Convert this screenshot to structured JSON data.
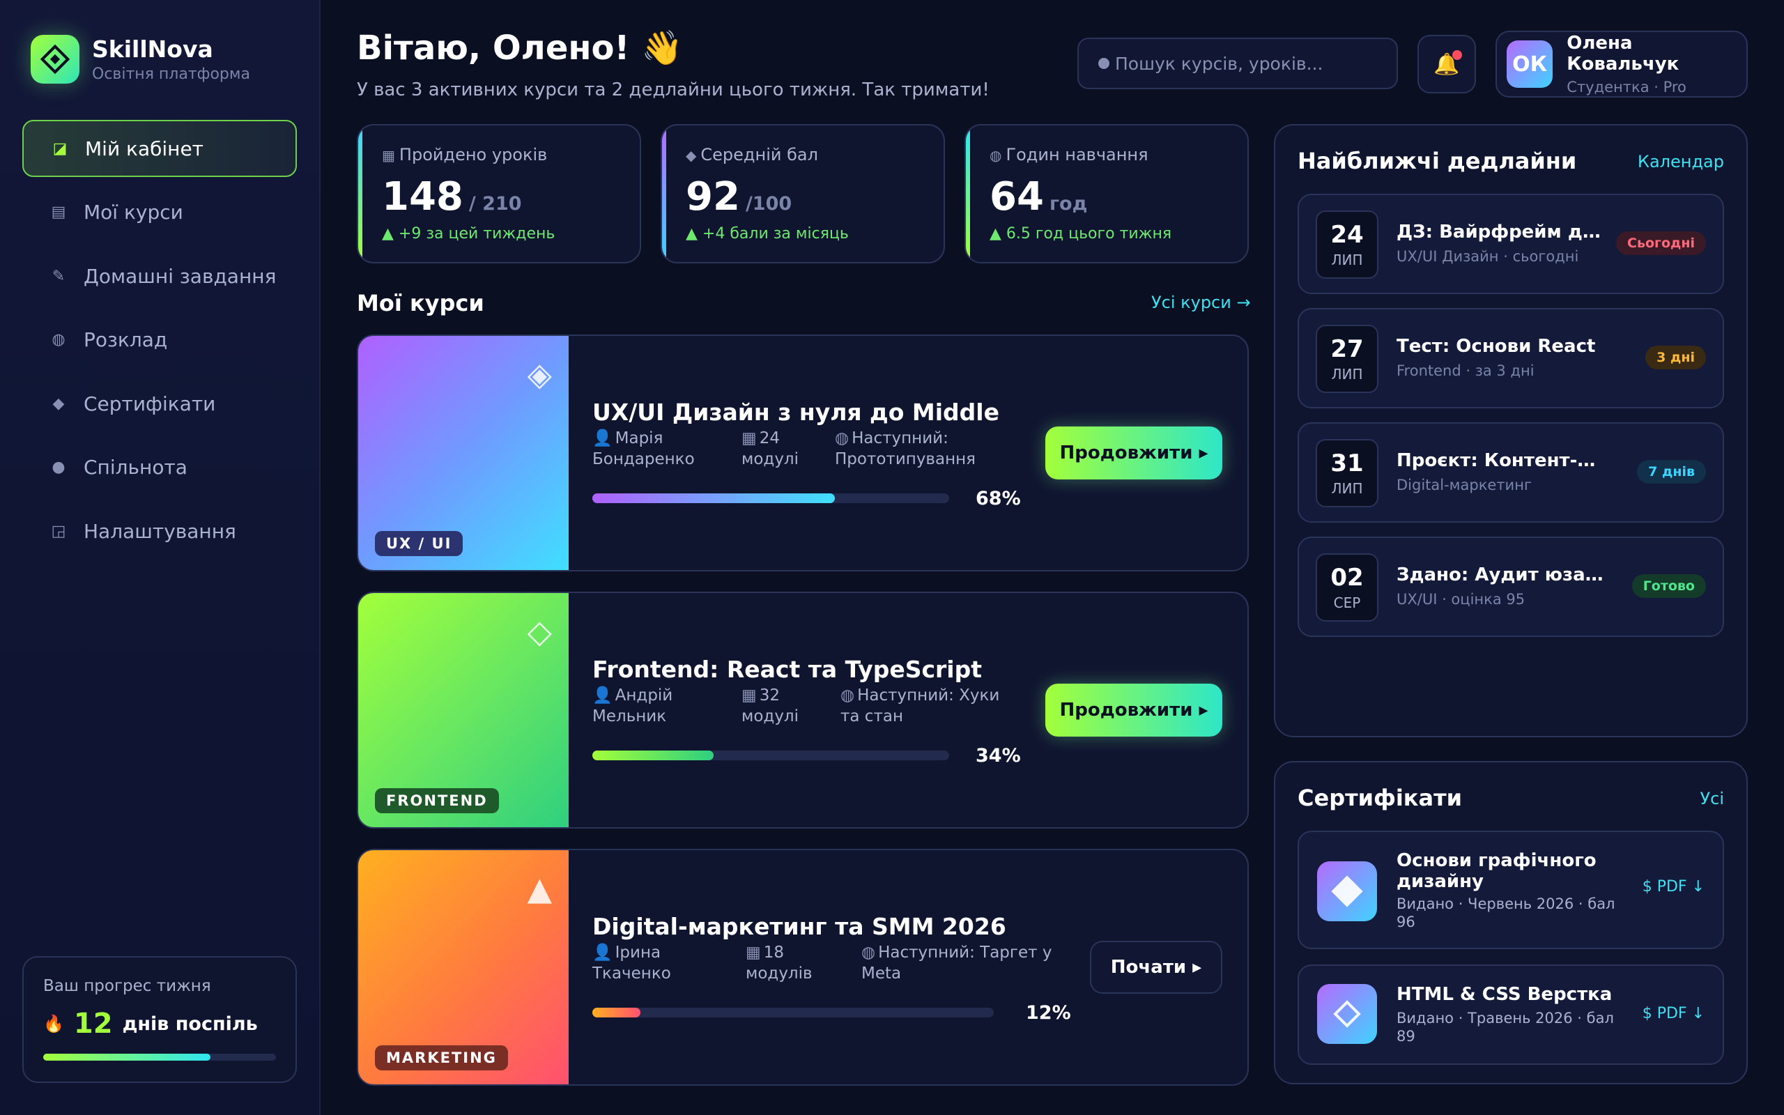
{
  "sidebar": {
    "brand": "SkillNova",
    "brand_sub": "Освітня платформа",
    "items": [
      {
        "label": "Мій кабінет",
        "icon": "◪"
      },
      {
        "label": "Мої курси",
        "icon": "▤"
      },
      {
        "label": "Домашні завдання",
        "icon": "✎"
      },
      {
        "label": "Розклад",
        "icon": "◍"
      },
      {
        "label": "Сертифікати",
        "icon": "◆"
      },
      {
        "label": "Спільнота",
        "icon": "●"
      },
      {
        "label": "Налаштування",
        "icon": "◲"
      }
    ],
    "week": {
      "title": "Ваш прогрес тижня",
      "icon": "🔥",
      "count": "12",
      "label": "днів поспіль",
      "progress": 0.72
    }
  },
  "header": {
    "title": "Вітаю, Олено! 👋",
    "subtitle": "У вас 3 активних курси та 2 дедлайни цього тижня. Так тримати!",
    "search_placeholder": "Пошук курсів, уроків...",
    "bell_icon": "🔔",
    "user": {
      "initials": "ОК",
      "name": "Олена Ковальчук",
      "role": "Студентка · Pro"
    }
  },
  "stats": [
    {
      "icon": "▦",
      "label": "Пройдено уроків",
      "value": "148",
      "unit": "/ 210",
      "delta": "▲ +9 за цей тиждень"
    },
    {
      "icon": "◆",
      "label": "Середній бал",
      "value": "92",
      "unit": "/100",
      "delta": "▲ +4 бали за місяць"
    },
    {
      "icon": "◍",
      "label": "Годин навчання",
      "value": "64",
      "unit": "год",
      "delta": "▲ 6.5 год цього тижня"
    }
  ],
  "courses_section": {
    "title": "Мої курси",
    "link": "Усі курси →"
  },
  "courses": [
    {
      "tag": "UX / UI",
      "glyph": "◈",
      "title": "UX/UI Дизайн з нуля до Middle",
      "author": "Марія Бондаренко",
      "modules": "24 модулі",
      "next": "Наступний: Прототипування",
      "progress": 68,
      "progress_label": "68%",
      "button": "Продовжити ▸"
    },
    {
      "tag": "FRONTEND",
      "glyph": "◇",
      "title": "Frontend: React та TypeScript",
      "author": "Андрій Мельник",
      "modules": "32 модулі",
      "next": "Наступний: Хуки та стан",
      "progress": 34,
      "progress_label": "34%",
      "button": "Продовжити ▸"
    },
    {
      "tag": "MARKETING",
      "glyph": "▲",
      "title": "Digital-маркетинг та SMM 2026",
      "author": "Ірина Ткаченко",
      "modules": "18 модулів",
      "next": "Наступний: Таргет у Meta",
      "progress": 12,
      "progress_label": "12%",
      "button": "Почати ▸"
    }
  ],
  "deadlines": {
    "title": "Найближчі дедлайни",
    "link": "Календар",
    "items": [
      {
        "day": "24",
        "month": "ЛИП",
        "title": "ДЗ: Вайрфрейм дод...",
        "sub": "UX/UI Дизайн · сьогодні",
        "badge": "Сьогодні"
      },
      {
        "day": "27",
        "month": "ЛИП",
        "title": "Тест: Основи React",
        "sub": "Frontend · за 3 дні",
        "badge": "3 дні"
      },
      {
        "day": "31",
        "month": "ЛИП",
        "title": "Проєкт: Контент-план",
        "sub": "Digital-маркетинг",
        "badge": "7 днів"
      },
      {
        "day": "02",
        "month": "СЕР",
        "title": "Здано: Аудит юзабіліті",
        "sub": "UX/UI · оцінка 95",
        "badge": "Готово"
      }
    ]
  },
  "certificates": {
    "title": "Сертифікати",
    "link": "Усі",
    "items": [
      {
        "title": "Основи графічного дизайну",
        "sub": "Видано · Червень 2026 · бал 96",
        "pdf": "$ PDF ↓"
      },
      {
        "title": "HTML & CSS Верстка",
        "sub": "Видано · Травень 2026 · бал 89",
        "pdf": "$ PDF ↓"
      }
    ]
  },
  "colors": {
    "accent": "#a3ff3a",
    "cyan": "#3fe0f0",
    "bg": "#0b0f22"
  }
}
